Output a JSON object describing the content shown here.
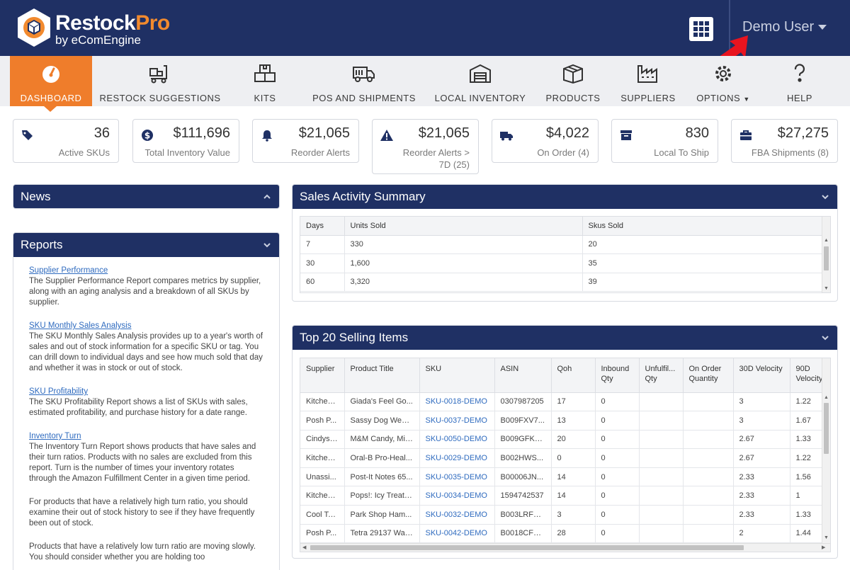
{
  "brand": {
    "name_main": "Restock",
    "name_accent": "Pro",
    "sub": "by eComEngine"
  },
  "header": {
    "user_label": "Demo User"
  },
  "nav": [
    {
      "label": "DASHBOARD",
      "icon": "gauge-icon"
    },
    {
      "label": "RESTOCK SUGGESTIONS",
      "icon": "hand-truck-icon"
    },
    {
      "label": "KITS",
      "icon": "boxes-icon"
    },
    {
      "label": "POS AND SHIPMENTS",
      "icon": "truck-icon"
    },
    {
      "label": "LOCAL INVENTORY",
      "icon": "warehouse-icon"
    },
    {
      "label": "PRODUCTS",
      "icon": "package-icon"
    },
    {
      "label": "SUPPLIERS",
      "icon": "factory-icon"
    },
    {
      "label": "OPTIONS",
      "icon": "gear-icon"
    },
    {
      "label": "HELP",
      "icon": "question-icon"
    }
  ],
  "stats": [
    {
      "value": "36",
      "label": "Active SKUs",
      "icon": "tag-icon"
    },
    {
      "value": "$111,696",
      "label": "Total Inventory Value",
      "icon": "dollar-icon"
    },
    {
      "value": "$21,065",
      "label": "Reorder Alerts",
      "icon": "bell-icon"
    },
    {
      "value": "$21,065",
      "label": "Reorder Alerts >",
      "label2": "7D (25)",
      "icon": "warning-icon"
    },
    {
      "value": "$4,022",
      "label": "On Order (4)",
      "icon": "truck-icon"
    },
    {
      "value": "830",
      "label": "Local To Ship",
      "icon": "archive-icon"
    },
    {
      "value": "$27,275",
      "label": "FBA Shipments (8)",
      "icon": "briefcase-icon"
    }
  ],
  "news": {
    "title": "News"
  },
  "reports": {
    "title": "Reports",
    "items": [
      {
        "link": "Supplier Performance",
        "desc": "The Supplier Performance Report compares metrics by supplier, along with an aging analysis and a breakdown of all SKUs by supplier."
      },
      {
        "link": "SKU Monthly Sales Analysis",
        "desc": "The SKU Monthly Sales Analysis provides up to a year's worth of sales and out of stock information for a specific SKU or tag. You can drill down to individual days and see how much sold that day and whether it was in stock or out of stock."
      },
      {
        "link": "SKU Profitability",
        "desc": "The SKU Profitability Report shows a list of SKUs with sales, estimated profitability, and purchase history for a date range."
      },
      {
        "link": "Inventory Turn",
        "desc": "The Inventory Turn Report shows products that have sales and their turn ratios. Products with no sales are excluded from this report. Turn is the number of times your inventory rotates through the Amazon Fulfillment Center in a given time period."
      }
    ],
    "paragraphs": [
      "For products that have a relatively high turn ratio, you should examine their out of stock history to see if they have frequently been out of stock.",
      "Products that have a relatively low turn ratio are moving slowly. You should consider whether you are holding too"
    ]
  },
  "sales_summary": {
    "title": "Sales Activity Summary",
    "headers": [
      "Days",
      "Units Sold",
      "Skus Sold"
    ],
    "rows": [
      [
        "7",
        "330",
        "20"
      ],
      [
        "30",
        "1,600",
        "35"
      ],
      [
        "60",
        "3,320",
        "39"
      ]
    ]
  },
  "top_selling": {
    "title": "Top 20 Selling Items",
    "headers": [
      "Supplier",
      "Product Title",
      "SKU",
      "ASIN",
      "Qoh",
      "Inbound Qty",
      "Unfulfil... Qty",
      "On Order Quantity",
      "30D Velocity",
      "90D Velocity"
    ],
    "rows": [
      [
        "Kitchen...",
        "Giada's Feel Go...",
        "SKU-0018-DEMO",
        "0307987205",
        "17",
        "0",
        "",
        "",
        "3",
        "1.22"
      ],
      [
        "Posh P...",
        "Sassy Dog Wear...",
        "SKU-0037-DEMO",
        "B009FXV7...",
        "13",
        "0",
        "",
        "",
        "3",
        "1.67"
      ],
      [
        "Cindys ...",
        "M&M Candy, Mil...",
        "SKU-0050-DEMO",
        "B009GFKP...",
        "20",
        "0",
        "",
        "",
        "2.67",
        "1.33"
      ],
      [
        "Kitchen...",
        "Oral-B Pro-Heal...",
        "SKU-0029-DEMO",
        "B002HWS...",
        "0",
        "0",
        "",
        "",
        "2.67",
        "1.22"
      ],
      [
        "Unassi...",
        "Post-It Notes 65...",
        "SKU-0035-DEMO",
        "B00006JN...",
        "14",
        "0",
        "",
        "",
        "2.33",
        "1.56"
      ],
      [
        "Kitchen...",
        "Pops!: Icy Treats...",
        "SKU-0034-DEMO",
        "1594742537",
        "14",
        "0",
        "",
        "",
        "2.33",
        "1"
      ],
      [
        "Cool To...",
        "Park Shop Ham...",
        "SKU-0032-DEMO",
        "B003LRFD...",
        "3",
        "0",
        "",
        "",
        "2.33",
        "1.33"
      ],
      [
        "Posh P...",
        "Tetra 29137 Wat...",
        "SKU-0042-DEMO",
        "B0018CFM...",
        "28",
        "0",
        "",
        "",
        "2",
        "1.44"
      ]
    ]
  },
  "colors": {
    "navy": "#1f3064",
    "orange": "#ef7d2b",
    "link": "#2f6bbf",
    "arrow": "#e8141f"
  }
}
